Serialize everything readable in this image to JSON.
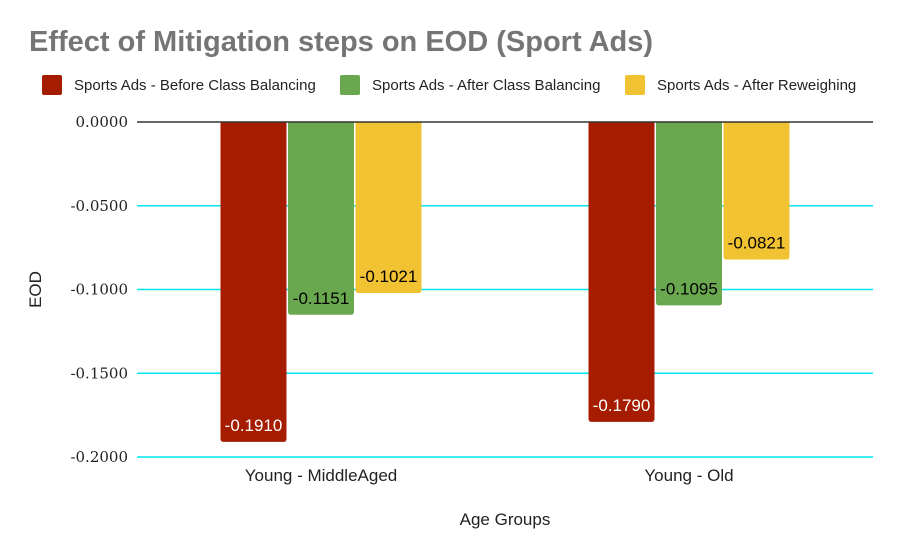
{
  "chart_data": {
    "type": "bar",
    "title": "Effect of Mitigation steps on EOD (Sport Ads)",
    "xlabel": "Age Groups",
    "ylabel": "EOD",
    "categories": [
      "Young - MiddleAged",
      "Young - Old"
    ],
    "series": [
      {
        "name": "Sports Ads - Before Class Balancing",
        "color": "#a61c00",
        "label_color": "#ffffff",
        "values": [
          -0.191,
          -0.179
        ],
        "labels": [
          "-0.1910",
          "-0.1790"
        ]
      },
      {
        "name": "Sports Ads - After Class Balancing",
        "color": "#6aa84f",
        "label_color": "#000000",
        "values": [
          -0.1151,
          -0.1095
        ],
        "labels": [
          "-0.1151",
          "-0.1095"
        ]
      },
      {
        "name": "Sports Ads - After Reweighing",
        "color": "#f1c232",
        "label_color": "#000000",
        "values": [
          -0.1021,
          -0.0821
        ],
        "labels": [
          "-0.1021",
          "-0.0821"
        ]
      }
    ],
    "ylim": [
      -0.2,
      0
    ],
    "yticks": [
      0,
      -0.05,
      -0.1,
      -0.15,
      -0.2
    ],
    "ytick_labels": [
      "0.0000",
      "-0.0500",
      "-0.1000",
      "-0.1500",
      "-0.2000"
    ],
    "grid": true,
    "grid_color": "#00e5ee",
    "legend_position": "top"
  }
}
